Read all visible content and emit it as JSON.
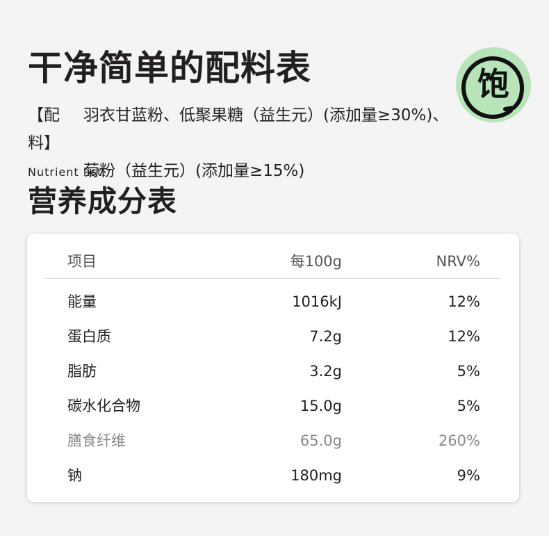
{
  "title": "干净简单的配料表",
  "logo": {
    "text": "饱",
    "color": "#b7e4b9"
  },
  "ingredients": {
    "label": "【配料】",
    "line1": "羽衣甘蓝粉、低聚果糖（益生元）(添加量≥30%)、",
    "line2": "菊粉（益生元）(添加量≥15%)"
  },
  "subtitle": "Nutrient list.",
  "section_title": "营养成分表",
  "table": {
    "headers": [
      "项目",
      "每100g",
      "NRV%"
    ],
    "rows": [
      {
        "item": "能量",
        "per100g": "1016kJ",
        "nrv": "12%"
      },
      {
        "item": "蛋白质",
        "per100g": "7.2g",
        "nrv": "12%"
      },
      {
        "item": "脂肪",
        "per100g": "3.2g",
        "nrv": "5%"
      },
      {
        "item": "碳水化合物",
        "per100g": "15.0g",
        "nrv": "5%"
      },
      {
        "item": "膳食纤维",
        "per100g": "65.0g",
        "nrv": "260%"
      },
      {
        "item": "钠",
        "per100g": "180mg",
        "nrv": "9%"
      }
    ]
  }
}
